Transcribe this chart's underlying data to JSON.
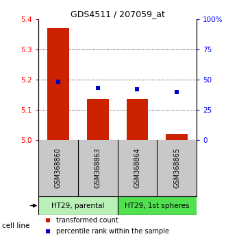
{
  "title": "GDS4511 / 207059_at",
  "samples": [
    "GSM368860",
    "GSM368863",
    "GSM368864",
    "GSM368865"
  ],
  "red_values": [
    5.37,
    5.135,
    5.135,
    5.02
  ],
  "blue_values": [
    48,
    43,
    42,
    40
  ],
  "ylim_left": [
    5.0,
    5.4
  ],
  "ylim_right": [
    0,
    100
  ],
  "yticks_left": [
    5.0,
    5.1,
    5.2,
    5.3,
    5.4
  ],
  "yticks_right": [
    0,
    25,
    50,
    75,
    100
  ],
  "ytick_labels_right": [
    "0",
    "25",
    "50",
    "75",
    "100%"
  ],
  "grid_lines": [
    5.1,
    5.2,
    5.3
  ],
  "cell_line_groups": [
    {
      "label": "HT29, parental",
      "samples_idx": [
        0,
        1
      ],
      "color": "#b8f0b8"
    },
    {
      "label": "HT29, 1st spheres",
      "samples_idx": [
        2,
        3
      ],
      "color": "#50e050"
    }
  ],
  "bar_color": "#cc2200",
  "dot_color": "#0000cc",
  "bar_width": 0.55,
  "background_color": "#ffffff",
  "label_area_color": "#c8c8c8",
  "cell_line_label": "cell line",
  "legend_red": "transformed count",
  "legend_blue": "percentile rank within the sample",
  "title_fontsize": 9,
  "tick_fontsize": 7.5,
  "sample_fontsize": 7,
  "cellline_fontsize": 7.5,
  "legend_fontsize": 7
}
